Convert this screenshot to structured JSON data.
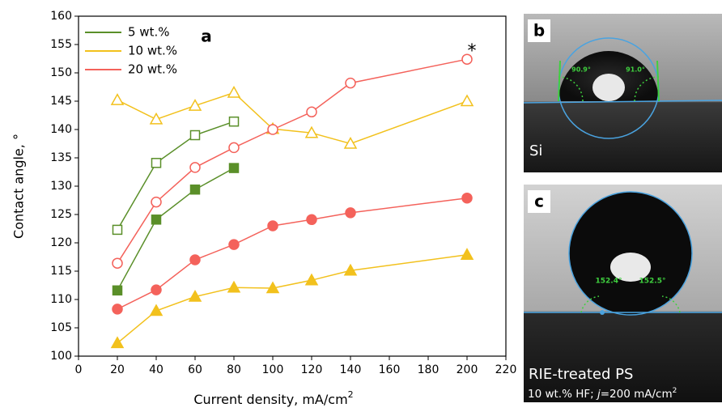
{
  "chart_data": {
    "type": "line",
    "xlabel": [
      "Current density, mA/cm",
      "2"
    ],
    "ylabel": "Contact angle, °",
    "xlim": [
      0,
      220
    ],
    "xticks": [
      0,
      20,
      40,
      60,
      80,
      100,
      120,
      140,
      160,
      180,
      200,
      220
    ],
    "ylim": [
      100,
      160
    ],
    "yticks": [
      100,
      105,
      110,
      115,
      120,
      125,
      130,
      135,
      140,
      145,
      150,
      155,
      160
    ],
    "annotations": [
      "a",
      "*"
    ],
    "legend": "upper left",
    "series": [
      {
        "name": "5 wt.%",
        "color": "#5a8f29",
        "marker": "square",
        "fill": "open",
        "x": [
          20,
          40,
          60,
          80
        ],
        "values": [
          122.3,
          134.1,
          139.0,
          141.4
        ]
      },
      {
        "name": "10 wt.%",
        "color": "#f2c11d",
        "marker": "triangle",
        "fill": "open",
        "x": [
          20,
          40,
          60,
          80,
          100,
          120,
          140,
          200
        ],
        "values": [
          145.2,
          141.8,
          144.2,
          146.5,
          140.1,
          139.4,
          137.5,
          145.0
        ]
      },
      {
        "name": "20 wt.%",
        "color": "#f4625b",
        "marker": "circle",
        "fill": "open",
        "x": [
          20,
          40,
          60,
          80,
          100,
          120,
          140,
          200
        ],
        "values": [
          116.4,
          127.2,
          133.3,
          136.8,
          140.0,
          143.1,
          148.2,
          152.4
        ]
      },
      {
        "color": "#5a8f29",
        "marker": "square",
        "fill": "filled",
        "x": [
          20,
          40,
          60,
          80
        ],
        "values": [
          111.6,
          124.1,
          129.4,
          133.2
        ]
      },
      {
        "color": "#f2c11d",
        "marker": "triangle",
        "fill": "filled",
        "x": [
          20,
          40,
          60,
          80,
          100,
          120,
          140,
          200
        ],
        "values": [
          102.3,
          108.0,
          110.5,
          112.1,
          112.0,
          113.4,
          115.1,
          117.9
        ]
      },
      {
        "color": "#f4625b",
        "marker": "circle",
        "fill": "filled",
        "x": [
          20,
          40,
          60,
          80,
          100,
          120,
          140,
          200
        ],
        "values": [
          108.3,
          111.7,
          117.0,
          119.7,
          123.0,
          124.1,
          125.3,
          127.9
        ]
      }
    ]
  },
  "panels": [
    {
      "label": "b",
      "angles": [
        "90.9°",
        "91.0°"
      ],
      "caption": "Si"
    },
    {
      "label": "c",
      "angles": [
        "152.4°",
        "152.5°"
      ],
      "caption": "RIE-treated PS",
      "note": [
        "10 wt.% HF; ",
        "j",
        "=200 mA/cm",
        "2"
      ]
    }
  ]
}
